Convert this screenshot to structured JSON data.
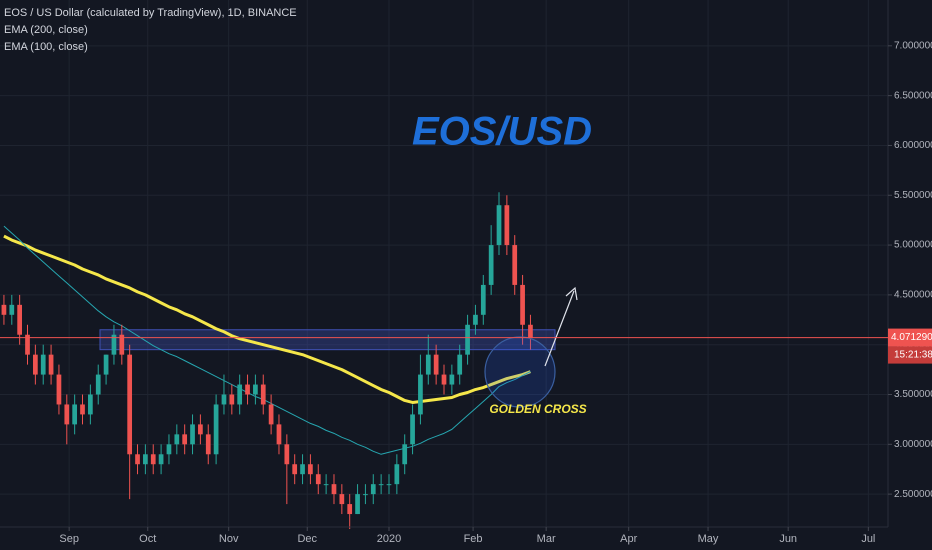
{
  "chart_data": {
    "type": "candlestick",
    "title": "EOS / US Dollar (calculated by TradingView), 1D, BINANCE",
    "open": [
      4.4,
      4.3,
      4.4,
      4.1,
      3.9,
      3.7,
      3.9,
      3.7,
      3.4,
      3.2,
      3.4,
      3.3,
      3.5,
      3.7,
      3.9,
      4.1,
      3.9,
      2.9,
      2.8,
      2.9,
      2.8,
      2.9,
      3.0,
      3.1,
      3.0,
      3.2,
      3.1,
      2.9,
      3.4,
      3.5,
      3.4,
      3.6,
      3.5,
      3.6,
      3.4,
      3.2,
      3.0,
      2.8,
      2.7,
      2.8,
      2.7,
      2.6,
      2.6,
      2.5,
      2.4,
      2.3,
      2.5,
      2.5,
      2.6,
      2.6,
      2.6,
      2.8,
      3.0,
      3.3,
      3.7,
      3.9,
      3.7,
      3.6,
      3.7,
      3.9,
      4.2,
      4.3,
      4.6,
      5.0,
      5.4,
      5.0,
      4.6,
      4.2
    ],
    "high": [
      4.5,
      4.5,
      4.5,
      4.2,
      4.0,
      4.0,
      4.0,
      3.8,
      3.5,
      3.5,
      3.5,
      3.6,
      3.8,
      3.9,
      4.2,
      4.2,
      4.0,
      3.0,
      3.0,
      3.0,
      3.0,
      3.1,
      3.2,
      3.2,
      3.3,
      3.3,
      3.2,
      3.5,
      3.7,
      3.6,
      3.7,
      3.7,
      3.7,
      3.7,
      3.5,
      3.3,
      3.1,
      2.9,
      2.9,
      2.9,
      2.8,
      2.7,
      2.7,
      2.6,
      2.5,
      2.6,
      2.6,
      2.7,
      2.7,
      2.7,
      2.9,
      3.1,
      3.4,
      3.9,
      4.1,
      4.0,
      3.8,
      3.8,
      4.0,
      4.3,
      4.4,
      4.7,
      5.2,
      5.53,
      5.5,
      5.1,
      4.7,
      4.3
    ],
    "low": [
      4.2,
      4.2,
      4.0,
      3.8,
      3.6,
      3.6,
      3.6,
      3.3,
      3.0,
      3.1,
      3.2,
      3.2,
      3.4,
      3.6,
      3.8,
      3.8,
      2.45,
      2.7,
      2.7,
      2.7,
      2.7,
      2.8,
      2.9,
      2.9,
      2.9,
      3.0,
      2.8,
      2.8,
      3.3,
      3.3,
      3.3,
      3.4,
      3.4,
      3.3,
      3.1,
      2.9,
      2.4,
      2.6,
      2.6,
      2.6,
      2.5,
      2.5,
      2.4,
      2.3,
      2.15,
      2.3,
      2.4,
      2.4,
      2.5,
      2.5,
      2.5,
      2.7,
      2.9,
      3.2,
      3.6,
      3.6,
      3.5,
      3.5,
      3.6,
      3.8,
      4.1,
      4.2,
      4.5,
      4.9,
      4.9,
      4.5,
      4.0,
      3.95
    ],
    "close": [
      4.3,
      4.4,
      4.1,
      3.9,
      3.7,
      3.9,
      3.7,
      3.4,
      3.2,
      3.4,
      3.3,
      3.5,
      3.7,
      3.9,
      4.1,
      3.9,
      2.9,
      2.8,
      2.9,
      2.8,
      2.9,
      3.0,
      3.1,
      3.0,
      3.2,
      3.1,
      2.9,
      3.4,
      3.5,
      3.4,
      3.6,
      3.5,
      3.6,
      3.4,
      3.2,
      3.0,
      2.8,
      2.7,
      2.8,
      2.7,
      2.6,
      2.6,
      2.5,
      2.4,
      2.3,
      2.5,
      2.5,
      2.6,
      2.6,
      2.6,
      2.8,
      3.0,
      3.3,
      3.7,
      3.9,
      3.7,
      3.6,
      3.7,
      3.9,
      4.2,
      4.3,
      4.6,
      5.0,
      5.4,
      5.0,
      4.6,
      4.2,
      4.07
    ],
    "up_color": "#26a69a",
    "down_color": "#ef5350",
    "series": [
      {
        "name": "EMA (200, close)",
        "color": "#f5e74a",
        "width": 3,
        "values": [
          5.09,
          5.05,
          5.02,
          4.99,
          4.95,
          4.92,
          4.89,
          4.86,
          4.83,
          4.8,
          4.76,
          4.73,
          4.7,
          4.66,
          4.63,
          4.6,
          4.57,
          4.53,
          4.5,
          4.46,
          4.42,
          4.38,
          4.35,
          4.31,
          4.28,
          4.24,
          4.2,
          4.16,
          4.13,
          4.09,
          4.06,
          4.04,
          4.02,
          4.0,
          3.98,
          3.96,
          3.94,
          3.92,
          3.9,
          3.87,
          3.84,
          3.81,
          3.78,
          3.75,
          3.71,
          3.67,
          3.63,
          3.59,
          3.55,
          3.52,
          3.48,
          3.44,
          3.42,
          3.43,
          3.44,
          3.45,
          3.46,
          3.47,
          3.5,
          3.52,
          3.55,
          3.57,
          3.6,
          3.63,
          3.66,
          3.68,
          3.7,
          3.73
        ]
      },
      {
        "name": "EMA (100, close)",
        "color": "#26a6b0",
        "width": 1,
        "values": [
          5.19,
          5.12,
          5.05,
          4.97,
          4.9,
          4.83,
          4.76,
          4.69,
          4.62,
          4.55,
          4.48,
          4.41,
          4.34,
          4.28,
          4.23,
          4.19,
          4.14,
          4.09,
          4.04,
          3.99,
          3.95,
          3.91,
          3.88,
          3.84,
          3.8,
          3.76,
          3.72,
          3.68,
          3.64,
          3.6,
          3.56,
          3.52,
          3.48,
          3.45,
          3.41,
          3.37,
          3.33,
          3.29,
          3.25,
          3.21,
          3.18,
          3.14,
          3.11,
          3.07,
          3.04,
          3.0,
          2.97,
          2.93,
          2.9,
          2.92,
          2.94,
          2.96,
          2.98,
          3.01,
          3.05,
          3.08,
          3.11,
          3.15,
          3.22,
          3.29,
          3.36,
          3.43,
          3.5,
          3.58,
          3.62,
          3.65,
          3.69,
          3.73
        ]
      }
    ],
    "xlim": [
      -0.5,
      112.5
    ],
    "ylim": [
      2.17,
      7.46
    ],
    "yticks": [
      {
        "value": 2.5,
        "label": "2.5000000"
      },
      {
        "value": 3.0,
        "label": "3.0000000"
      },
      {
        "value": 3.5,
        "label": "3.5000000"
      },
      {
        "value": 4.0,
        "label": "4.0000000"
      },
      {
        "value": 4.5,
        "label": "4.5000000"
      },
      {
        "value": 5.0,
        "label": "5.0000000"
      },
      {
        "value": 5.5,
        "label": "5.5000000"
      },
      {
        "value": 6.0,
        "label": "6.0000000"
      },
      {
        "value": 6.5,
        "label": "6.5000000"
      },
      {
        "value": 7.0,
        "label": "7.0000000"
      }
    ],
    "xticks": [
      {
        "value": 8.3,
        "label": "Sep"
      },
      {
        "value": 18.3,
        "label": "Oct"
      },
      {
        "value": 28.6,
        "label": "Nov"
      },
      {
        "value": 38.6,
        "label": "Dec"
      },
      {
        "value": 49.0,
        "label": "2020"
      },
      {
        "value": 59.7,
        "label": "Feb"
      },
      {
        "value": 69.0,
        "label": "Mar"
      },
      {
        "value": 79.5,
        "label": "Apr"
      },
      {
        "value": 89.6,
        "label": "May"
      },
      {
        "value": 99.8,
        "label": "Jun"
      },
      {
        "value": 110.0,
        "label": "Jul"
      }
    ],
    "grid": true,
    "zone": [
      3.95,
      4.15
    ],
    "last_price": 4.0712906,
    "countdown": "15:21:38",
    "annotations": {
      "pair": "EOS/USD",
      "signal": "GOLDEN CROSS"
    }
  }
}
